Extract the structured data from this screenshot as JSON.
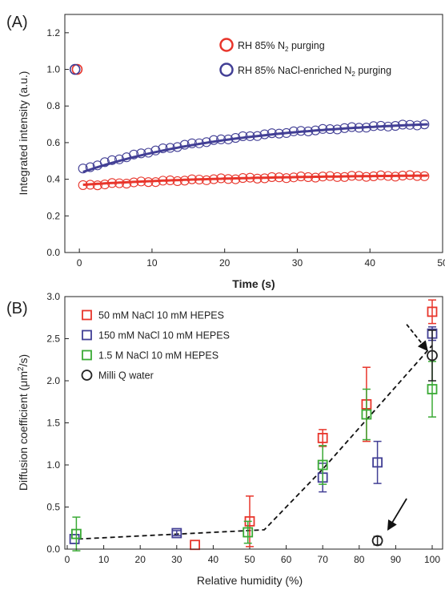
{
  "chart_data": [
    {
      "panel_label": "(A)",
      "type": "scatter",
      "xlabel": "Time (s)",
      "ylabel": "Integrated intensity (a.u.)",
      "xlim": [
        -2,
        50
      ],
      "ylim": [
        0.0,
        1.3
      ],
      "x_ticks": [
        0,
        10,
        20,
        30,
        40,
        50
      ],
      "y_ticks": [
        0.0,
        0.2,
        0.4,
        0.6,
        0.8,
        1.0,
        1.2
      ],
      "legend_position": "top-right",
      "series": [
        {
          "name": "RH 85% N<sub>2</sub> purging",
          "name_parts": [
            "RH 85% N",
            "2",
            " purging"
          ],
          "color": "#e8352b",
          "marker": "open-circle",
          "pre_point": {
            "x": -0.3,
            "y": 1.0
          },
          "points": {
            "start": 0.5,
            "end": 48,
            "step": 1,
            "y_start": 0.365,
            "y_end": 0.42,
            "curvature": 2.2
          },
          "fit": {
            "y_start": 0.37,
            "y_end": 0.42,
            "curvature": 2.2
          }
        },
        {
          "name": "RH 85% NaCl-enriched N<sub>2</sub> purging",
          "name_parts": [
            "RH 85% NaCl-enriched N",
            "2",
            " purging"
          ],
          "color": "#423f95",
          "marker": "open-circle",
          "pre_point": {
            "x": -0.6,
            "y": 1.0
          },
          "points": {
            "start": 0.5,
            "end": 48,
            "step": 1,
            "y_start": 0.455,
            "y_end": 0.7,
            "curvature": 2.2
          },
          "fit": {
            "y_start": 0.44,
            "y_end": 0.7,
            "curvature": 2.2
          }
        }
      ]
    },
    {
      "panel_label": "(B)",
      "type": "scatter",
      "xlabel": "Relative humidity (%)",
      "ylabel_parts": [
        "Diffusion coefficient (μm",
        "2",
        "/s)"
      ],
      "xlim": [
        0,
        100
      ],
      "ylim": [
        0.0,
        3.0
      ],
      "x_ticks": [
        0,
        10,
        20,
        30,
        40,
        50,
        60,
        70,
        80,
        90,
        100
      ],
      "y_ticks": [
        0.0,
        0.5,
        1.0,
        1.5,
        2.0,
        2.5,
        3.0
      ],
      "legend_position": "top-left",
      "series": [
        {
          "name": "50 mM NaCl 10 mM HEPES",
          "color": "#e8352b",
          "marker": "open-square",
          "points": [
            {
              "x": 35,
              "y": 0.05,
              "err": 0
            },
            {
              "x": 50,
              "y": 0.33,
              "err": 0.3
            },
            {
              "x": 70,
              "y": 1.32,
              "err": 0.1
            },
            {
              "x": 82,
              "y": 1.72,
              "err": 0.44
            },
            {
              "x": 100,
              "y": 2.82,
              "err": 0.14
            }
          ]
        },
        {
          "name": "150 mM NaCl 10 mM HEPES",
          "color": "#423f95",
          "marker": "open-square",
          "points": [
            {
              "x": 2,
              "y": 0.12,
              "err": 0
            },
            {
              "x": 30,
              "y": 0.19,
              "err": 0.03
            },
            {
              "x": 70,
              "y": 0.85,
              "err": 0.17
            },
            {
              "x": 85,
              "y": 1.03,
              "err": 0.25
            },
            {
              "x": 100,
              "y": 2.56,
              "err": 0.08
            }
          ]
        },
        {
          "name": "1.5 M NaCl 10 mM HEPES",
          "color": "#3aaa35",
          "marker": "open-square",
          "points": [
            {
              "x": 2.5,
              "y": 0.18,
              "err": 0.2
            },
            {
              "x": 49.5,
              "y": 0.2,
              "err": 0.13
            },
            {
              "x": 70,
              "y": 1.0,
              "err": 0.23
            },
            {
              "x": 82,
              "y": 1.6,
              "err": 0.3
            },
            {
              "x": 100,
              "y": 1.9,
              "err": 0.33
            }
          ]
        },
        {
          "name": "Milli Q water",
          "color": "#222222",
          "marker": "open-circle",
          "points": [
            {
              "x": 85,
              "y": 0.1,
              "err": 0.05
            },
            {
              "x": 100,
              "y": 2.3,
              "err": 0.3
            }
          ]
        }
      ],
      "guide_line": [
        [
          3,
          0.12
        ],
        [
          54,
          0.23
        ],
        [
          70,
          0.95
        ],
        [
          100,
          2.42
        ]
      ],
      "arrows": [
        {
          "from": [
            93,
            0.6
          ],
          "to": [
            88,
            0.24
          ],
          "style": "solid"
        },
        {
          "from": [
            93,
            2.67
          ],
          "to": [
            98.5,
            2.37
          ],
          "style": "dashed"
        }
      ]
    }
  ]
}
